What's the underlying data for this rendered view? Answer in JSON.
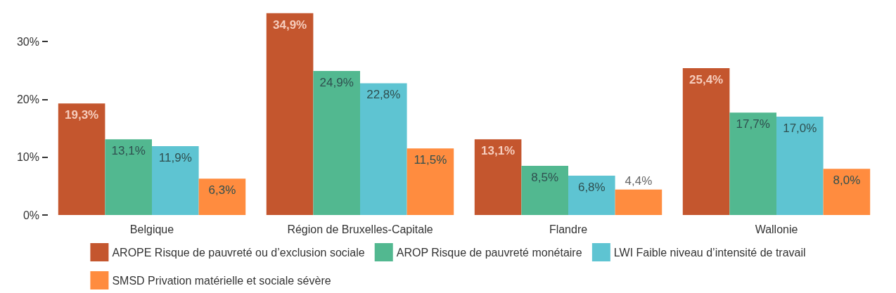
{
  "chart_data": {
    "type": "bar",
    "categories": [
      "Belgique",
      "Région de Bruxelles-Capitale",
      "Flandre",
      "Wallonie"
    ],
    "series": [
      {
        "name": "AROPE Risque de pauvreté ou d’exclusion sociale",
        "color": "#c4562e",
        "values": [
          19.3,
          34.9,
          13.1,
          25.4
        ],
        "value_labels": [
          "19,3%",
          "34,9%",
          "13,1%",
          "25,4%"
        ]
      },
      {
        "name": "AROP Risque de pauvreté monétaire",
        "color": "#52b890",
        "values": [
          13.1,
          24.9,
          8.5,
          17.7
        ],
        "value_labels": [
          "13,1%",
          "24,9%",
          "8,5%",
          "17,7%"
        ]
      },
      {
        "name": "LWI Faible niveau d’intensité de travail",
        "color": "#5ec4d2",
        "values": [
          11.9,
          22.8,
          6.8,
          17.0
        ],
        "value_labels": [
          "11,9%",
          "22,8%",
          "6,8%",
          "17,0%"
        ]
      },
      {
        "name": "SMSD Privation matérielle et sociale sévère",
        "color": "#ff8c3f",
        "values": [
          6.3,
          11.5,
          4.4,
          8.0
        ],
        "value_labels": [
          "6,3%",
          "11,5%",
          "4,4%",
          "8,0%"
        ]
      }
    ],
    "ylim": [
      0,
      35
    ],
    "yticks": [
      {
        "value": 0,
        "label": "0%"
      },
      {
        "value": 10,
        "label": "10%"
      },
      {
        "value": 20,
        "label": "20%"
      },
      {
        "value": 30,
        "label": "30%"
      }
    ],
    "grid": false,
    "legend": "bottom"
  }
}
